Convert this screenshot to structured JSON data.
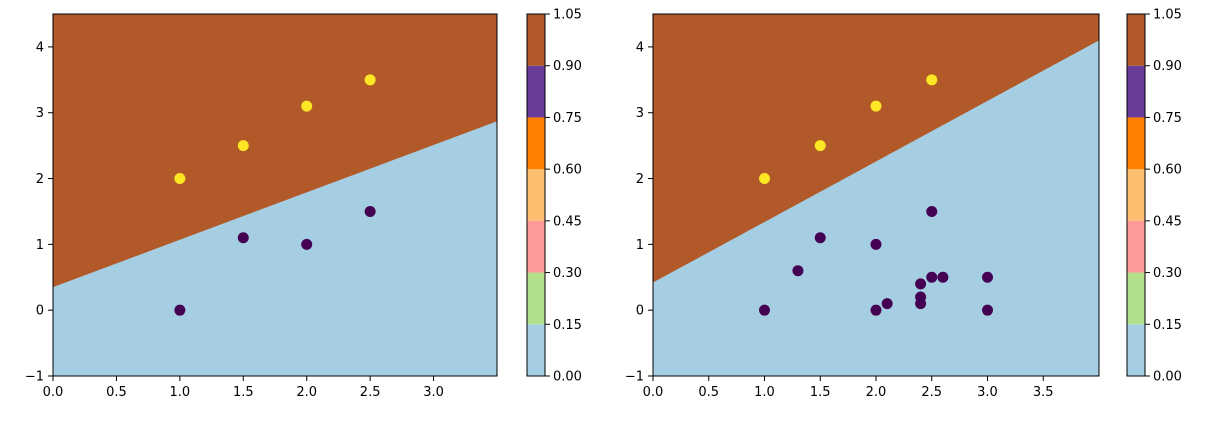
{
  "colors": {
    "region_low": "#a6cee3",
    "region_high": "#b15928",
    "class_0_point": "#440154",
    "class_1_point": "#fde725",
    "axis": "#000000"
  },
  "colorbar_bands": [
    "#a6cee3",
    "#b2df8a",
    "#fb9a99",
    "#fdbf6f",
    "#ff7f00",
    "#6a3d9a",
    "#b15928"
  ],
  "chart_data": [
    {
      "type": "scatter",
      "title": "",
      "xlabel": "",
      "ylabel": "",
      "xlim": [
        0,
        3.5
      ],
      "ylim": [
        -1,
        4.5
      ],
      "x_ticks": [
        "0.0",
        "0.5",
        "1.0",
        "1.5",
        "2.0",
        "2.5",
        "3.0"
      ],
      "y_ticks": [
        "−1",
        "0",
        "1",
        "2",
        "3",
        "4"
      ],
      "decision_boundary": {
        "intercept": 0.35,
        "slope": 0.72
      },
      "region_values": {
        "below": 0,
        "above": 1
      },
      "series": [
        {
          "class": 1,
          "x": [
            1.0,
            1.5,
            2.0,
            2.5
          ],
          "y": [
            2.0,
            2.5,
            3.1,
            3.5
          ]
        },
        {
          "class": 0,
          "x": [
            1.0,
            1.5,
            2.0,
            2.5
          ],
          "y": [
            0.0,
            1.1,
            1.0,
            1.5
          ]
        }
      ],
      "colorbar": {
        "ticks": [
          "0.00",
          "0.15",
          "0.30",
          "0.45",
          "0.60",
          "0.75",
          "0.90",
          "1.05"
        ],
        "range": [
          0,
          1.05
        ]
      }
    },
    {
      "type": "scatter",
      "title": "",
      "xlabel": "",
      "ylabel": "",
      "xlim": [
        0,
        4.0
      ],
      "ylim": [
        -1,
        4.5
      ],
      "x_ticks": [
        "0.0",
        "0.5",
        "1.0",
        "1.5",
        "2.0",
        "2.5",
        "3.0",
        "3.5"
      ],
      "y_ticks": [
        "−1",
        "0",
        "1",
        "2",
        "3",
        "4"
      ],
      "decision_boundary": {
        "intercept": 0.42,
        "slope": 0.92
      },
      "region_values": {
        "below": 0,
        "above": 1
      },
      "series": [
        {
          "class": 1,
          "x": [
            1.0,
            1.5,
            2.0,
            2.5
          ],
          "y": [
            2.0,
            2.5,
            3.1,
            3.5
          ]
        },
        {
          "class": 0,
          "x": [
            1.0,
            1.3,
            1.5,
            2.0,
            2.0,
            2.1,
            2.4,
            2.4,
            2.4,
            2.5,
            2.5,
            2.6,
            3.0,
            3.0
          ],
          "y": [
            0.0,
            0.6,
            1.1,
            1.0,
            0.0,
            0.1,
            0.4,
            0.2,
            0.1,
            1.5,
            0.5,
            0.5,
            0.5,
            0.0
          ]
        }
      ],
      "colorbar": {
        "ticks": [
          "0.00",
          "0.15",
          "0.30",
          "0.45",
          "0.60",
          "0.75",
          "0.90",
          "1.05"
        ],
        "range": [
          0,
          1.05
        ]
      }
    }
  ]
}
